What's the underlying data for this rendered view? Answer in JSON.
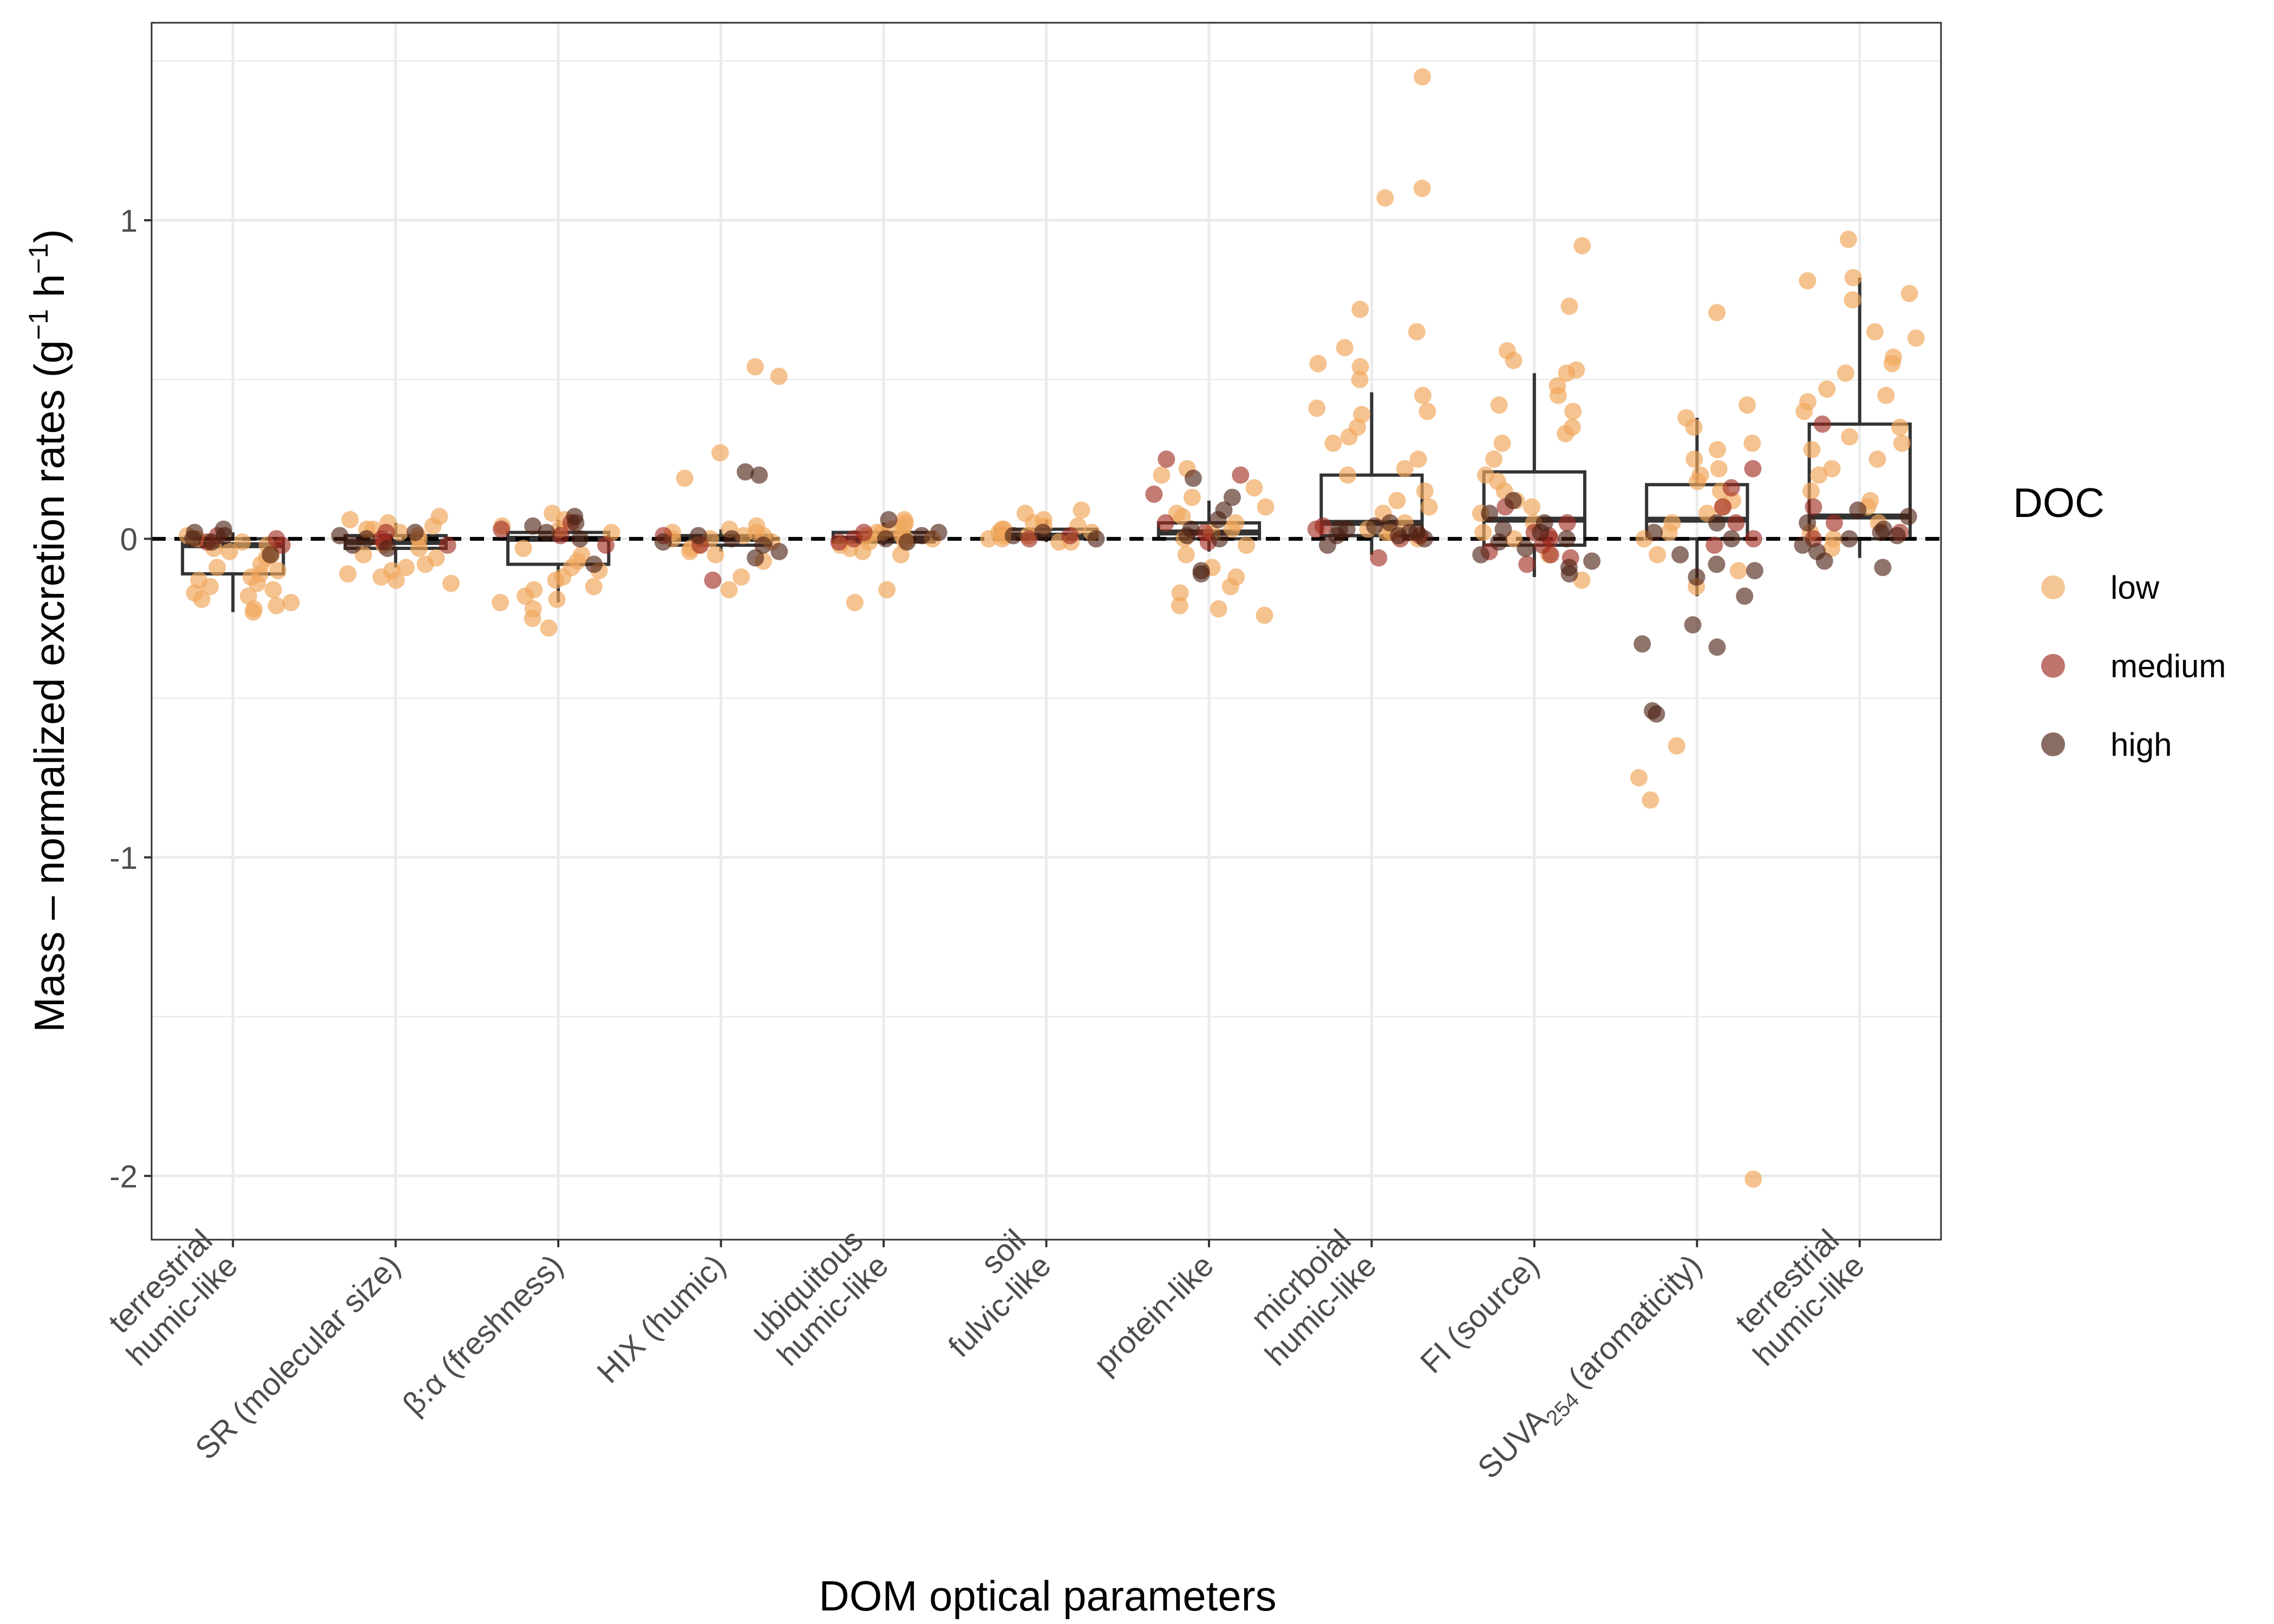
{
  "chart_data": {
    "type": "box+jitter",
    "xlabel": "DOM optical parameters",
    "ylabel": {
      "prefix": "Mass – normalized excretion rates (g",
      "sup1": "−1",
      "mid": " h",
      "sup2": "−1",
      "suffix": ")"
    },
    "ylim": [
      -2.2,
      1.62
    ],
    "yticks": [
      -2,
      -1,
      0,
      1
    ],
    "ytick_labels": [
      "-2",
      "-1",
      "0",
      "1"
    ],
    "reference_line": {
      "y": 0,
      "style": "dashed"
    },
    "grid": true,
    "legend": {
      "title": "DOC",
      "position": "right",
      "entries": [
        {
          "label": "low",
          "color": "#F0A75C"
        },
        {
          "label": "medium",
          "color": "#9E2A1F"
        },
        {
          "label": "high",
          "color": "#4A1E12"
        }
      ]
    },
    "categories": [
      {
        "lines": [
          "terrestrial",
          "humic-like"
        ]
      },
      {
        "lines": [
          "SR (molecular size)"
        ]
      },
      {
        "lines": [
          "β:α (freshness)"
        ]
      },
      {
        "lines": [
          "HIX (humic)"
        ]
      },
      {
        "lines": [
          "ubiquitous",
          "humic-like"
        ]
      },
      {
        "lines": [
          "soil",
          "fulvic-like"
        ]
      },
      {
        "lines": [
          "protein-like"
        ]
      },
      {
        "lines": [
          "micrboial",
          "humic-like"
        ]
      },
      {
        "lines": [
          "FI (source)"
        ]
      },
      {
        "lines": [
          "SUVA"
        ],
        "sub": "254",
        "after": " (aromaticity)"
      },
      {
        "lines": [
          "terrestrial",
          "humic-like"
        ]
      }
    ],
    "boxes": [
      {
        "q1": -0.11,
        "median": -0.02,
        "q3": 0.0,
        "wlo": -0.23,
        "whi": 0.02
      },
      {
        "q1": -0.03,
        "median": -0.01,
        "q3": 0.01,
        "wlo": -0.09,
        "whi": 0.05
      },
      {
        "q1": -0.08,
        "median": 0.0,
        "q3": 0.02,
        "wlo": -0.2,
        "whi": 0.06
      },
      {
        "q1": -0.02,
        "median": 0.0,
        "q3": 0.01,
        "wlo": -0.04,
        "whi": 0.03
      },
      {
        "q1": -0.01,
        "median": 0.0,
        "q3": 0.02,
        "wlo": -0.02,
        "whi": 0.05
      },
      {
        "q1": 0.0,
        "median": 0.01,
        "q3": 0.03,
        "wlo": -0.01,
        "whi": 0.06
      },
      {
        "q1": 0.0,
        "median": 0.02,
        "q3": 0.05,
        "wlo": -0.04,
        "whi": 0.12
      },
      {
        "q1": 0.01,
        "median": 0.05,
        "q3": 0.2,
        "wlo": -0.05,
        "whi": 0.46
      },
      {
        "q1": -0.02,
        "median": 0.06,
        "q3": 0.21,
        "wlo": -0.12,
        "whi": 0.52
      },
      {
        "q1": 0.0,
        "median": 0.06,
        "q3": 0.17,
        "wlo": -0.18,
        "whi": 0.38
      },
      {
        "q1": 0.0,
        "median": 0.07,
        "q3": 0.36,
        "wlo": -0.06,
        "whi": 0.82
      }
    ],
    "points": [
      [
        [
          -0.12,
          -0.15,
          -0.18,
          -0.2,
          -0.22,
          -0.23,
          -0.17,
          -0.1,
          -0.14,
          -0.05,
          -0.08,
          -0.03,
          -0.02,
          0.0,
          -0.01,
          -0.19,
          -0.13,
          -0.06,
          -0.21,
          -0.16,
          0.01,
          -0.04,
          -0.11,
          -0.09
        ],
        [
          -0.01,
          0.01,
          -0.02,
          0.0
        ],
        [
          0.03,
          0.01,
          -0.05,
          0.02,
          0.0,
          -0.01
        ]
      ],
      [
        [
          -0.12,
          -0.13,
          -0.14,
          -0.1,
          -0.08,
          -0.05,
          0.05,
          0.07,
          0.04,
          0.03,
          0.02,
          -0.06,
          -0.03,
          0.06,
          -0.09,
          -0.11,
          0.01,
          -0.02,
          0.0,
          0.03
        ],
        [
          0.0,
          -0.01,
          0.02,
          -0.02
        ],
        [
          -0.03,
          0.01,
          0.0,
          -0.02,
          0.02
        ]
      ],
      [
        [
          -0.2,
          -0.22,
          -0.25,
          -0.28,
          -0.18,
          -0.15,
          -0.13,
          -0.12,
          -0.1,
          -0.09,
          -0.05,
          0.04,
          0.06,
          0.08,
          0.03,
          -0.07,
          -0.16,
          -0.19,
          0.02,
          -0.03
        ],
        [
          0.01,
          -0.02,
          0.05,
          0.03
        ],
        [
          0.07,
          0.05,
          0.02,
          -0.08,
          0.0,
          0.04
        ]
      ],
      [
        [
          0.54,
          0.51,
          0.27,
          0.19,
          -0.16,
          -0.12,
          -0.07,
          0.03,
          0.01,
          0.02,
          -0.01,
          0.0,
          -0.03,
          -0.05,
          0.04,
          -0.02,
          0.01,
          -0.04,
          0.02,
          0.0
        ],
        [
          -0.13,
          0.01,
          -0.02
        ],
        [
          0.21,
          0.2,
          -0.06,
          -0.04,
          0.0,
          -0.02,
          0.01,
          -0.01
        ]
      ],
      [
        [
          -0.2,
          -0.16,
          -0.05,
          0.05,
          0.04,
          0.02,
          0.01,
          0.0,
          -0.01,
          -0.02,
          0.03,
          -0.03,
          0.06,
          0.02,
          -0.04,
          0.0,
          0.01,
          -0.01
        ],
        [
          0.0,
          0.02,
          -0.01
        ],
        [
          0.06,
          0.02,
          -0.01,
          0.0,
          0.01
        ]
      ],
      [
        [
          0.09,
          0.08,
          0.06,
          0.04,
          0.03,
          0.02,
          0.01,
          0.0,
          -0.01,
          0.05,
          0.02,
          0.01,
          0.03,
          0.0,
          0.04,
          -0.01
        ],
        [
          0.01,
          0.0
        ],
        [
          0.01,
          0.02,
          0.0
        ]
      ],
      [
        [
          0.22,
          0.2,
          0.16,
          0.13,
          0.1,
          0.08,
          -0.21,
          -0.22,
          -0.24,
          -0.17,
          -0.12,
          -0.05,
          -0.02,
          0.0,
          0.02,
          0.05,
          -0.09,
          0.03,
          -0.15,
          0.07
        ],
        [
          0.25,
          0.2,
          0.14,
          0.05,
          -0.01,
          0.02
        ],
        [
          0.19,
          0.13,
          0.09,
          0.06,
          0.03,
          -0.11,
          -0.1,
          0.0,
          0.01
        ]
      ],
      [
        [
          1.45,
          1.1,
          1.07,
          0.72,
          0.65,
          0.6,
          0.55,
          0.54,
          0.5,
          0.45,
          0.4,
          0.41,
          0.39,
          0.35,
          0.3,
          0.25,
          0.2,
          0.15,
          0.12,
          0.1,
          0.05,
          0.03,
          0.02,
          0.0,
          0.32,
          0.22,
          0.08,
          0.02
        ],
        [
          -0.06,
          0.04,
          0.01,
          0.0,
          0.03
        ],
        [
          0.05,
          0.03,
          0.02,
          0.01,
          0.0,
          0.04,
          0.02,
          0.01,
          -0.02,
          0.03
        ]
      ],
      [
        [
          0.92,
          0.73,
          0.59,
          0.56,
          0.53,
          0.52,
          0.48,
          0.45,
          0.42,
          0.4,
          0.35,
          0.33,
          0.3,
          0.25,
          0.2,
          0.15,
          0.12,
          0.1,
          0.05,
          0.02,
          0.0,
          -0.05,
          -0.13,
          0.18,
          0.08
        ],
        [
          0.1,
          0.05,
          0.02,
          0.0,
          -0.02,
          -0.04,
          -0.06,
          -0.08,
          -0.05,
          0.01
        ],
        [
          0.12,
          0.08,
          0.05,
          0.02,
          0.0,
          -0.03,
          -0.05,
          -0.07,
          -0.09,
          -0.11,
          0.03,
          -0.01
        ]
      ],
      [
        [
          0.71,
          0.42,
          0.38,
          0.35,
          0.3,
          0.28,
          0.25,
          0.22,
          0.2,
          0.18,
          0.15,
          0.1,
          0.05,
          0.02,
          0.0,
          -0.05,
          -0.1,
          -0.15,
          -0.65,
          -0.75,
          -0.82,
          -2.01,
          0.12,
          0.08
        ],
        [
          0.22,
          0.16,
          0.1,
          0.05,
          0.0,
          -0.02
        ],
        [
          0.05,
          0.02,
          0.0,
          -0.05,
          -0.08,
          -0.12,
          -0.18,
          -0.27,
          -0.33,
          -0.34,
          -0.54,
          -0.55,
          -0.1
        ]
      ],
      [
        [
          0.94,
          0.82,
          0.81,
          0.77,
          0.75,
          0.65,
          0.63,
          0.57,
          0.55,
          0.52,
          0.47,
          0.45,
          0.43,
          0.4,
          0.35,
          0.32,
          0.3,
          0.25,
          0.22,
          0.2,
          0.15,
          0.12,
          0.1,
          0.05,
          0.02,
          0.0,
          -0.03,
          0.28
        ],
        [
          0.36,
          0.1,
          0.05,
          0.02,
          0.0
        ],
        [
          0.09,
          0.07,
          0.05,
          0.03,
          0.02,
          0.0,
          -0.02,
          -0.04,
          -0.07,
          -0.09,
          0.01
        ]
      ]
    ]
  }
}
